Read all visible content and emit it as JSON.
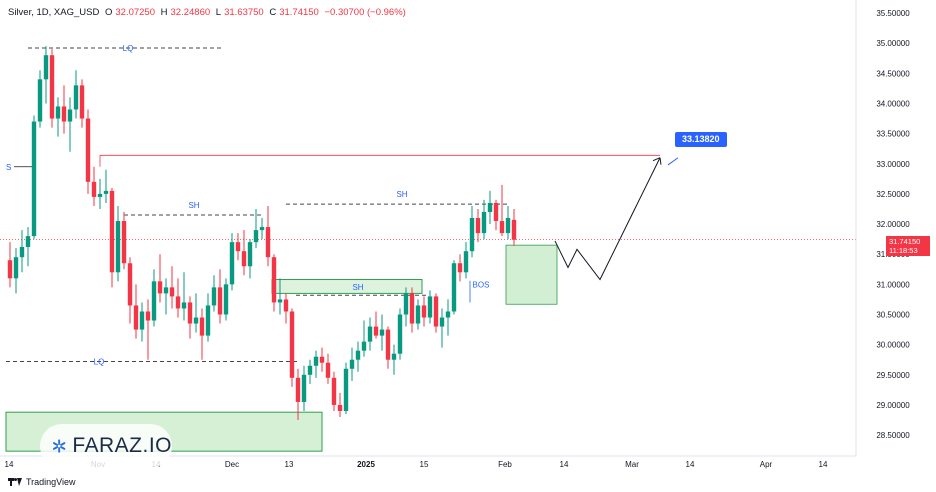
{
  "header": {
    "symbol": "Silver, 1D, XAG_USD",
    "open_label": "O",
    "open": "32.07250",
    "high_label": "H",
    "high": "32.24860",
    "low_label": "L",
    "low": "31.63750",
    "close_label": "C",
    "close": "31.74150",
    "change": "−0.30700 (−0.96%)"
  },
  "price_axis_labels": [
    "35.50000",
    "35.00000",
    "34.50000",
    "34.00000",
    "33.50000",
    "33.00000",
    "32.50000",
    "32.00000",
    "31.50000",
    "31.00000",
    "30.50000",
    "30.00000",
    "29.50000",
    "29.00000",
    "28.50000"
  ],
  "time_axis_labels": [
    "14",
    "Nov",
    "14",
    "Dec",
    "13",
    "2025",
    "15",
    "Feb",
    "14",
    "Mar",
    "14",
    "Apr",
    "14"
  ],
  "last_price": "31.74150",
  "countdown": "11:18:53",
  "target_label": "33.13820",
  "annotations": {
    "lq_top": "LQ",
    "lq_bottom": "LQ",
    "sh_left": "SH",
    "sh_mid": "SH",
    "sh_right": "SH",
    "bos": "BOS",
    "s_edge": "S"
  },
  "watermark": "FARAZ.IO",
  "tradingview": "TradingView",
  "colors": {
    "up": "#089981",
    "down": "#f23645",
    "target": "#2962ff",
    "zone_green": "#c8ebc8",
    "resistance": "#f23645"
  },
  "chart_data": {
    "type": "candlestick",
    "title": "Silver, 1D, XAG_USD",
    "ylim": [
      28.3,
      35.6
    ],
    "candles": [
      {
        "date": "2024-10-14",
        "o": 31.4,
        "h": 31.7,
        "l": 30.95,
        "c": 31.1
      },
      {
        "date": "2024-10-15",
        "o": 31.1,
        "h": 31.6,
        "l": 30.85,
        "c": 31.45
      },
      {
        "date": "2024-10-16",
        "o": 31.45,
        "h": 31.9,
        "l": 31.2,
        "c": 31.62
      },
      {
        "date": "2024-10-17",
        "o": 31.62,
        "h": 31.95,
        "l": 31.3,
        "c": 31.8
      },
      {
        "date": "2024-10-18",
        "o": 31.8,
        "h": 33.8,
        "l": 31.75,
        "c": 33.7
      },
      {
        "date": "2024-10-21",
        "o": 33.7,
        "h": 34.55,
        "l": 33.6,
        "c": 34.4
      },
      {
        "date": "2024-10-22",
        "o": 34.4,
        "h": 34.95,
        "l": 34.0,
        "c": 34.8
      },
      {
        "date": "2024-10-23",
        "o": 34.8,
        "h": 34.9,
        "l": 33.6,
        "c": 33.75
      },
      {
        "date": "2024-10-24",
        "o": 33.75,
        "h": 34.1,
        "l": 33.45,
        "c": 33.95
      },
      {
        "date": "2024-10-25",
        "o": 33.95,
        "h": 34.3,
        "l": 33.5,
        "c": 33.7
      },
      {
        "date": "2024-10-28",
        "o": 33.7,
        "h": 34.1,
        "l": 33.2,
        "c": 33.9
      },
      {
        "date": "2024-10-29",
        "o": 33.9,
        "h": 34.55,
        "l": 33.75,
        "c": 34.3
      },
      {
        "date": "2024-10-30",
        "o": 34.3,
        "h": 34.4,
        "l": 33.6,
        "c": 33.75
      },
      {
        "date": "2024-10-31",
        "o": 33.75,
        "h": 33.9,
        "l": 32.5,
        "c": 32.7
      },
      {
        "date": "2024-11-01",
        "o": 32.7,
        "h": 32.95,
        "l": 32.3,
        "c": 32.45
      },
      {
        "date": "2024-11-04",
        "o": 32.45,
        "h": 32.75,
        "l": 32.25,
        "c": 32.5
      },
      {
        "date": "2024-11-05",
        "o": 32.5,
        "h": 32.9,
        "l": 32.35,
        "c": 32.55
      },
      {
        "date": "2024-11-06",
        "o": 32.55,
        "h": 32.6,
        "l": 30.95,
        "c": 31.2
      },
      {
        "date": "2024-11-07",
        "o": 31.2,
        "h": 32.3,
        "l": 31.05,
        "c": 32.05
      },
      {
        "date": "2024-11-08",
        "o": 32.05,
        "h": 32.2,
        "l": 31.25,
        "c": 31.35
      },
      {
        "date": "2024-11-11",
        "o": 31.35,
        "h": 31.45,
        "l": 30.35,
        "c": 30.65
      },
      {
        "date": "2024-11-12",
        "o": 30.65,
        "h": 31.0,
        "l": 30.1,
        "c": 30.25
      },
      {
        "date": "2024-11-13",
        "o": 30.25,
        "h": 30.7,
        "l": 30.05,
        "c": 30.55
      },
      {
        "date": "2024-11-14",
        "o": 30.55,
        "h": 30.75,
        "l": 29.75,
        "c": 30.4
      },
      {
        "date": "2024-11-15",
        "o": 30.4,
        "h": 31.25,
        "l": 30.3,
        "c": 31.05
      },
      {
        "date": "2024-11-18",
        "o": 31.05,
        "h": 31.5,
        "l": 30.7,
        "c": 30.85
      },
      {
        "date": "2024-11-19",
        "o": 30.85,
        "h": 31.1,
        "l": 30.5,
        "c": 30.95
      },
      {
        "date": "2024-11-20",
        "o": 30.95,
        "h": 31.3,
        "l": 30.6,
        "c": 30.8
      },
      {
        "date": "2024-11-21",
        "o": 30.8,
        "h": 31.1,
        "l": 30.45,
        "c": 30.6
      },
      {
        "date": "2024-11-22",
        "o": 30.6,
        "h": 31.2,
        "l": 30.4,
        "c": 30.7
      },
      {
        "date": "2024-11-25",
        "o": 30.7,
        "h": 30.8,
        "l": 30.1,
        "c": 30.35
      },
      {
        "date": "2024-11-26",
        "o": 30.35,
        "h": 30.85,
        "l": 30.2,
        "c": 30.45
      },
      {
        "date": "2024-11-27",
        "o": 30.45,
        "h": 30.6,
        "l": 29.75,
        "c": 30.15
      },
      {
        "date": "2024-11-28",
        "o": 30.15,
        "h": 30.85,
        "l": 30.05,
        "c": 30.65
      },
      {
        "date": "2024-11-29",
        "o": 30.65,
        "h": 31.15,
        "l": 30.55,
        "c": 30.95
      },
      {
        "date": "2024-12-02",
        "o": 30.95,
        "h": 31.25,
        "l": 30.35,
        "c": 30.5
      },
      {
        "date": "2024-12-03",
        "o": 30.5,
        "h": 31.1,
        "l": 30.4,
        "c": 31.0
      },
      {
        "date": "2024-12-04",
        "o": 31.0,
        "h": 31.85,
        "l": 30.9,
        "c": 31.7
      },
      {
        "date": "2024-12-05",
        "o": 31.7,
        "h": 31.85,
        "l": 31.4,
        "c": 31.55
      },
      {
        "date": "2024-12-06",
        "o": 31.55,
        "h": 31.9,
        "l": 31.15,
        "c": 31.3
      },
      {
        "date": "2024-12-09",
        "o": 31.3,
        "h": 31.75,
        "l": 31.1,
        "c": 31.7
      },
      {
        "date": "2024-12-10",
        "o": 31.7,
        "h": 32.25,
        "l": 31.6,
        "c": 31.9
      },
      {
        "date": "2024-12-11",
        "o": 31.9,
        "h": 32.1,
        "l": 31.75,
        "c": 31.95
      },
      {
        "date": "2024-12-12",
        "o": 31.95,
        "h": 32.3,
        "l": 31.3,
        "c": 31.45
      },
      {
        "date": "2024-12-13",
        "o": 31.45,
        "h": 31.5,
        "l": 30.55,
        "c": 30.7
      },
      {
        "date": "2024-12-16",
        "o": 30.7,
        "h": 31.1,
        "l": 30.5,
        "c": 30.75
      },
      {
        "date": "2024-12-17",
        "o": 30.75,
        "h": 30.85,
        "l": 30.35,
        "c": 30.55
      },
      {
        "date": "2024-12-18",
        "o": 30.55,
        "h": 30.6,
        "l": 29.3,
        "c": 29.45
      },
      {
        "date": "2024-12-19",
        "o": 29.45,
        "h": 29.6,
        "l": 28.75,
        "c": 29.05
      },
      {
        "date": "2024-12-20",
        "o": 29.05,
        "h": 29.65,
        "l": 28.9,
        "c": 29.5
      },
      {
        "date": "2024-12-23",
        "o": 29.5,
        "h": 29.75,
        "l": 29.35,
        "c": 29.65
      },
      {
        "date": "2024-12-24",
        "o": 29.65,
        "h": 29.9,
        "l": 29.45,
        "c": 29.8
      },
      {
        "date": "2024-12-26",
        "o": 29.8,
        "h": 29.95,
        "l": 29.55,
        "c": 29.7
      },
      {
        "date": "2024-12-27",
        "o": 29.7,
        "h": 29.85,
        "l": 29.35,
        "c": 29.45
      },
      {
        "date": "2024-12-30",
        "o": 29.45,
        "h": 29.55,
        "l": 28.9,
        "c": 29.0
      },
      {
        "date": "2024-12-31",
        "o": 29.0,
        "h": 29.2,
        "l": 28.8,
        "c": 28.9
      },
      {
        "date": "2025-01-02",
        "o": 28.9,
        "h": 29.7,
        "l": 28.85,
        "c": 29.6
      },
      {
        "date": "2025-01-03",
        "o": 29.6,
        "h": 29.95,
        "l": 29.4,
        "c": 29.75
      },
      {
        "date": "2025-01-06",
        "o": 29.75,
        "h": 30.05,
        "l": 29.55,
        "c": 29.9
      },
      {
        "date": "2025-01-07",
        "o": 29.9,
        "h": 30.4,
        "l": 29.8,
        "c": 30.05
      },
      {
        "date": "2025-01-08",
        "o": 30.05,
        "h": 30.45,
        "l": 29.9,
        "c": 30.3
      },
      {
        "date": "2025-01-09",
        "o": 30.3,
        "h": 30.55,
        "l": 30.1,
        "c": 30.15
      },
      {
        "date": "2025-01-10",
        "o": 30.15,
        "h": 30.5,
        "l": 29.9,
        "c": 30.25
      },
      {
        "date": "2025-01-13",
        "o": 30.25,
        "h": 30.3,
        "l": 29.6,
        "c": 29.75
      },
      {
        "date": "2025-01-14",
        "o": 29.75,
        "h": 30.0,
        "l": 29.5,
        "c": 29.85
      },
      {
        "date": "2025-01-15",
        "o": 29.85,
        "h": 30.6,
        "l": 29.75,
        "c": 30.5
      },
      {
        "date": "2025-01-16",
        "o": 30.5,
        "h": 30.95,
        "l": 30.3,
        "c": 30.85
      },
      {
        "date": "2025-01-17",
        "o": 30.85,
        "h": 30.95,
        "l": 30.2,
        "c": 30.35
      },
      {
        "date": "2025-01-20",
        "o": 30.35,
        "h": 30.75,
        "l": 30.25,
        "c": 30.65
      },
      {
        "date": "2025-01-21",
        "o": 30.65,
        "h": 30.8,
        "l": 30.3,
        "c": 30.45
      },
      {
        "date": "2025-01-22",
        "o": 30.45,
        "h": 30.9,
        "l": 30.35,
        "c": 30.8
      },
      {
        "date": "2025-01-23",
        "o": 30.8,
        "h": 30.85,
        "l": 30.2,
        "c": 30.3
      },
      {
        "date": "2025-01-24",
        "o": 30.3,
        "h": 30.6,
        "l": 29.95,
        "c": 30.45
      },
      {
        "date": "2025-01-27",
        "o": 30.45,
        "h": 30.75,
        "l": 30.15,
        "c": 30.55
      },
      {
        "date": "2025-01-28",
        "o": 30.55,
        "h": 31.4,
        "l": 30.5,
        "c": 31.35
      },
      {
        "date": "2025-01-29",
        "o": 31.35,
        "h": 31.5,
        "l": 31.05,
        "c": 31.2
      },
      {
        "date": "2025-01-30",
        "o": 31.2,
        "h": 31.7,
        "l": 31.1,
        "c": 31.55
      },
      {
        "date": "2025-01-31",
        "o": 31.55,
        "h": 32.3,
        "l": 31.45,
        "c": 32.1
      },
      {
        "date": "2025-02-03",
        "o": 32.1,
        "h": 32.25,
        "l": 31.7,
        "c": 31.85
      },
      {
        "date": "2025-02-04",
        "o": 31.85,
        "h": 32.4,
        "l": 31.75,
        "c": 32.2
      },
      {
        "date": "2025-02-05",
        "o": 32.2,
        "h": 32.55,
        "l": 32.0,
        "c": 32.35
      },
      {
        "date": "2025-02-06",
        "o": 32.35,
        "h": 32.4,
        "l": 31.9,
        "c": 32.05
      },
      {
        "date": "2025-02-07",
        "o": 32.05,
        "h": 32.65,
        "l": 31.8,
        "c": 31.85
      },
      {
        "date": "2025-02-10",
        "o": 31.85,
        "h": 32.3,
        "l": 31.75,
        "c": 32.1
      },
      {
        "date": "2025-02-11",
        "o": 32.07,
        "h": 32.25,
        "l": 31.64,
        "c": 31.74
      }
    ],
    "levels": [
      {
        "name": "LQ",
        "price": 34.92
      },
      {
        "name": "LQ",
        "price": 29.72
      },
      {
        "name": "SH",
        "price": 32.15
      },
      {
        "name": "SH",
        "price": 32.35
      },
      {
        "name": "SH",
        "price": 30.82
      },
      {
        "name": "target",
        "price": 33.14
      }
    ],
    "projection": [
      {
        "date": "2025-02-12",
        "price": 31.75
      },
      {
        "date": "2025-02-13",
        "price": 31.5
      },
      {
        "date": "2025-02-14",
        "price": 31.6
      },
      {
        "date": "2025-02-18",
        "price": 31.1
      },
      {
        "date": "2025-03-06",
        "price": 33.1
      }
    ]
  }
}
